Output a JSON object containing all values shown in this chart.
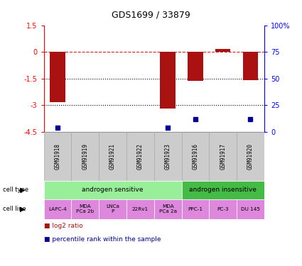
{
  "title": "GDS1699 / 33879",
  "samples": [
    "GSM91918",
    "GSM91919",
    "GSM91921",
    "GSM91922",
    "GSM91923",
    "GSM91916",
    "GSM91917",
    "GSM91920"
  ],
  "log2_ratios": [
    -2.85,
    0.0,
    0.0,
    0.0,
    -3.2,
    -1.65,
    0.15,
    -1.6
  ],
  "percentile_rank_indices": [
    0,
    4,
    5,
    7
  ],
  "percentile_rank_values": [
    4,
    4,
    12,
    12
  ],
  "ylim": [
    -4.5,
    1.5
  ],
  "yticks_left": [
    1.5,
    0.0,
    -1.5,
    -3.0,
    -4.5
  ],
  "yticks_left_labels": [
    "1.5",
    "0",
    "-1.5",
    "-3",
    "-4.5"
  ],
  "yticks_right": [
    100,
    75,
    50,
    25,
    0
  ],
  "yticks_right_labels": [
    "100%",
    "75",
    "50",
    "25",
    "0"
  ],
  "dotted_lines": [
    -1.5,
    -3.0
  ],
  "bar_color": "#aa1111",
  "percentile_color": "#000099",
  "dashed_line_color": "#cc2222",
  "bar_width": 0.55,
  "cell_types": [
    {
      "label": "androgen sensitive",
      "start": 0,
      "end": 5,
      "color": "#99ee99"
    },
    {
      "label": "androgen insensitive",
      "start": 5,
      "end": 8,
      "color": "#44bb44"
    }
  ],
  "cell_lines": [
    "LAPC-4",
    "MDA\nPCa 2b",
    "LNCa\nP",
    "22Rv1",
    "MDA\nPCa 2a",
    "PPC-1",
    "PC-3",
    "DU 145"
  ],
  "cell_line_color": "#dd88dd",
  "gsm_bg_color": "#cccccc",
  "gsm_border_color": "#aaaaaa"
}
